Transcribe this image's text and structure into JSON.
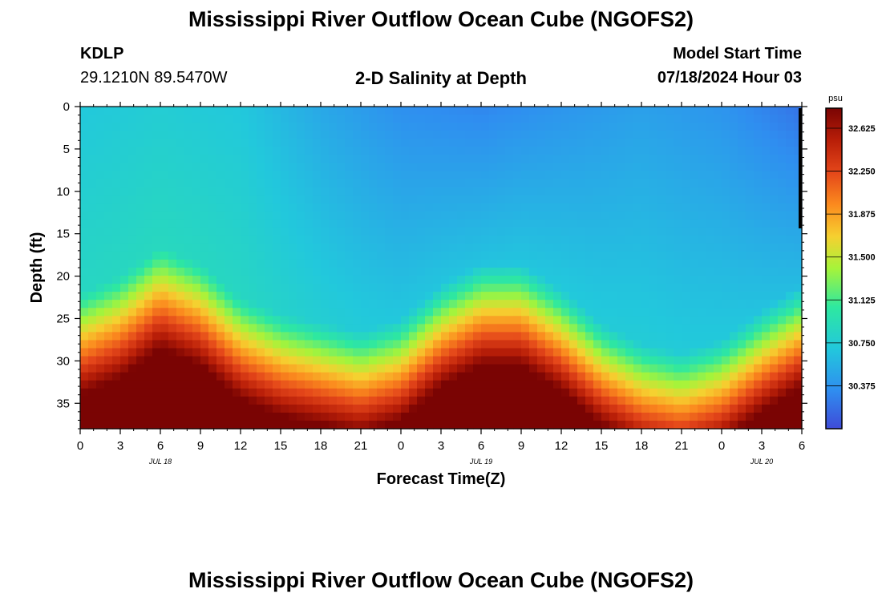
{
  "header": {
    "title": "Mississippi River Outflow Ocean Cube (NGOFS2)",
    "station_id": "KDLP",
    "station_coords": "29.1210N  89.5470W",
    "subtitle": "2-D Salinity at Depth",
    "model_start_label": "Model Start Time",
    "model_start_value": "07/18/2024 Hour 03"
  },
  "footer": {
    "title": "Mississippi River Outflow Ocean Cube (NGOFS2)"
  },
  "chart_data": {
    "type": "heatmap",
    "xlabel": "Forecast Time(Z)",
    "ylabel": "Depth (ft)",
    "colorbar_unit": "psu",
    "x_tick_labels": [
      "0",
      "3",
      "6",
      "9",
      "12",
      "15",
      "18",
      "21",
      "0",
      "3",
      "6",
      "9",
      "12",
      "15",
      "18",
      "21",
      "0",
      "3",
      "6"
    ],
    "x_range_hours": [
      0,
      54
    ],
    "date_labels": [
      {
        "label": "JUL 18",
        "at_hour": 6
      },
      {
        "label": "JUL 19",
        "at_hour": 30
      },
      {
        "label": "JUL 20",
        "at_hour": 51
      }
    ],
    "y_tick_labels": [
      "0",
      "5",
      "10",
      "15",
      "20",
      "25",
      "30",
      "35"
    ],
    "y_range_ft": [
      0,
      38
    ],
    "y_inverted": true,
    "color_range_psu": [
      30.0,
      32.8
    ],
    "colorbar_ticks": [
      "30.375",
      "30.750",
      "31.125",
      "31.500",
      "31.875",
      "32.250",
      "32.625"
    ],
    "halocline_depth_ft": {
      "hours": [
        0,
        3,
        6,
        9,
        12,
        15,
        18,
        21,
        24,
        27,
        30,
        33,
        36,
        39,
        42,
        45,
        48,
        51,
        54
      ],
      "depth": [
        27,
        25,
        21.5,
        23.5,
        27.5,
        29.5,
        30.5,
        31.5,
        30,
        26,
        23.5,
        23.5,
        26.5,
        30.5,
        33,
        34,
        32.5,
        29,
        26
      ]
    },
    "surface_salinity_psu": {
      "hours": [
        0,
        6,
        12,
        18,
        24,
        30,
        36,
        42,
        48,
        54
      ],
      "value": [
        30.7,
        30.75,
        30.7,
        30.5,
        30.35,
        30.3,
        30.38,
        30.45,
        30.38,
        30.2
      ]
    },
    "bottom_salinity_psu": 32.8
  }
}
